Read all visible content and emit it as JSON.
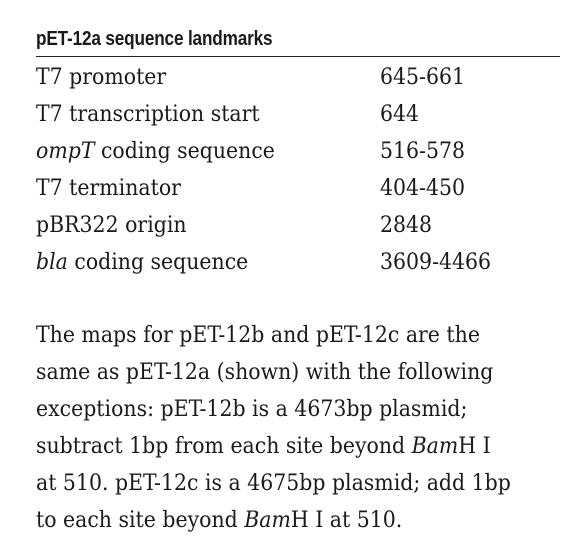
{
  "heading": "pET-12a sequence landmarks",
  "landmarks": [
    {
      "name": "T7 promoter",
      "italic_part": "",
      "rest": "T7 promoter",
      "range": "645-661"
    },
    {
      "name": "T7 transcription start",
      "italic_part": "",
      "rest": "T7 transcription start",
      "range": "644"
    },
    {
      "name": "ompT coding sequence",
      "italic_part": "ompT",
      "rest": " coding sequence",
      "range": "516-578"
    },
    {
      "name": "T7 terminator",
      "italic_part": "",
      "rest": "T7 terminator",
      "range": "404-450"
    },
    {
      "name": "pBR322 origin",
      "italic_part": "",
      "rest": "pBR322 origin",
      "range": "2848"
    },
    {
      "name": "bla coding sequence",
      "italic_part": "bla",
      "rest": " coding sequence",
      "range": "3609-4466"
    }
  ],
  "paragraph": {
    "lines": [
      {
        "pre": "The maps for pET-12b and pET-12c are the",
        "ital": "",
        "post": ""
      },
      {
        "pre": "same as pET-12a (shown) with the following",
        "ital": "",
        "post": ""
      },
      {
        "pre": "exceptions: pET-12b is a 4673bp plasmid;",
        "ital": "",
        "post": ""
      },
      {
        "pre": "subtract 1bp from each site beyond ",
        "ital": "Bam",
        "post": "H I"
      },
      {
        "pre": "at 510. pET-12c is a 4675bp plasmid; add 1bp",
        "ital": "",
        "post": ""
      },
      {
        "pre": "to each site beyond ",
        "ital": "Bam",
        "post": "H I at 510."
      }
    ]
  }
}
